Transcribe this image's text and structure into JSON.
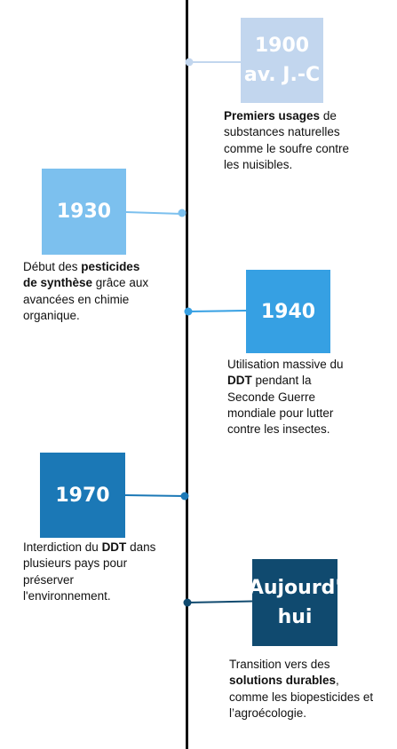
{
  "timeline": {
    "events": [
      {
        "year": "1900\nav. J.-C",
        "color": "#c2d6ee",
        "desc_parts": [
          "",
          "Premiers usages",
          " de substances naturelles comme le soufre contre les nuisibles."
        ]
      },
      {
        "year": "1930",
        "color": "#7cc0ee",
        "desc_parts": [
          "Début des ",
          "pesticides de synthèse",
          " grâce aux avancées en chimie organique."
        ]
      },
      {
        "year": "1940",
        "color": "#36a0e3",
        "desc_parts": [
          "Utilisation massive du ",
          "DDT",
          " pendant la Seconde Guerre mondiale pour lutter contre les insectes."
        ]
      },
      {
        "year": "1970",
        "color": "#1b78b6",
        "desc_parts": [
          "Interdiction du ",
          "DDT",
          " dans plusieurs pays pour préserver l'environnement."
        ]
      },
      {
        "year": "Aujourd'\nhui",
        "color": "#104a6f",
        "desc_parts": [
          "Transition vers des ",
          "solutions durables",
          ", comme les biopesticides et l’agroécologie."
        ]
      }
    ]
  }
}
